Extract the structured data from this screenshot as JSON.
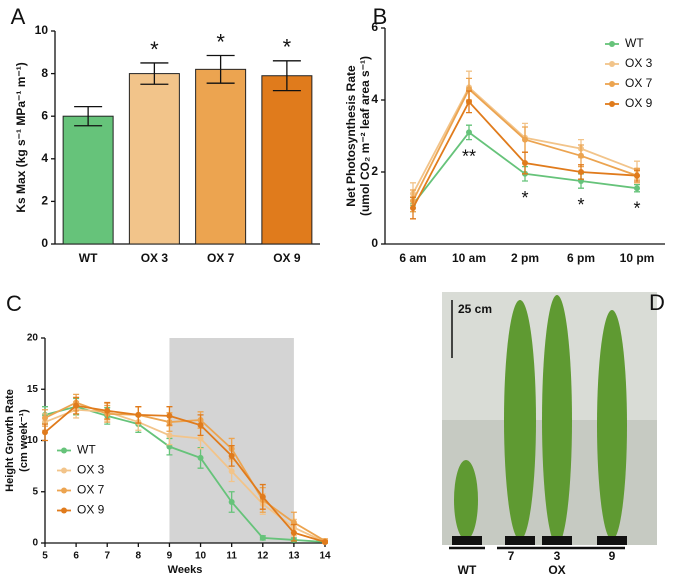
{
  "chart_data": [
    {
      "type": "bar",
      "panel": "A",
      "ylabel": [
        "Ks Max (kg s⁻¹ MPa⁻¹ m⁻¹)"
      ],
      "categories": [
        "WT",
        "OX 3",
        "OX 7",
        "OX 9"
      ],
      "values": [
        6.0,
        8.0,
        8.2,
        7.9
      ],
      "errors": [
        0.45,
        0.5,
        0.65,
        0.7
      ],
      "colors": [
        "#66c37a",
        "#f2c48a",
        "#eca450",
        "#e07b1c"
      ],
      "significance": [
        null,
        "*",
        "*",
        "*"
      ],
      "ylim": [
        0,
        10
      ],
      "yticks": [
        0,
        2,
        4,
        6,
        8,
        10
      ]
    },
    {
      "type": "line",
      "panel": "B",
      "ylabel": [
        "Net Photosynthesis Rate",
        "(umol CO₂ m⁻² leaf area s⁻¹)"
      ],
      "categories": [
        "6 am",
        "10 am",
        "2 pm",
        "6 pm",
        "10 pm"
      ],
      "series": [
        {
          "name": "WT",
          "color": "#66c37a",
          "values": [
            1.1,
            3.1,
            1.95,
            1.75,
            1.55
          ],
          "errors": [
            0.2,
            0.2,
            0.2,
            0.2,
            0.1
          ]
        },
        {
          "name": "OX 3",
          "color": "#f2c48a",
          "values": [
            1.4,
            4.35,
            2.95,
            2.65,
            2.05
          ],
          "errors": [
            0.3,
            0.45,
            0.4,
            0.25,
            0.25
          ]
        },
        {
          "name": "OX 7",
          "color": "#eca450",
          "values": [
            1.2,
            4.3,
            2.9,
            2.45,
            1.9
          ],
          "errors": [
            0.3,
            0.3,
            0.35,
            0.3,
            0.2
          ]
        },
        {
          "name": "OX 9",
          "color": "#e07b1c",
          "values": [
            1.0,
            3.95,
            2.25,
            2.0,
            1.9
          ],
          "errors": [
            0.3,
            0.3,
            0.3,
            0.2,
            0.15
          ]
        }
      ],
      "significance": [
        null,
        "**",
        "*",
        "*",
        "*"
      ],
      "legend": "upper right",
      "ylim": [
        0,
        6
      ],
      "yticks": [
        0,
        2,
        4,
        6
      ]
    },
    {
      "type": "line",
      "panel": "C",
      "ylabel": [
        "Height Growth Rate",
        "(cm week⁻¹)"
      ],
      "xlabel": "Weeks",
      "x": [
        5,
        6,
        7,
        8,
        9,
        10,
        11,
        12,
        13,
        14
      ],
      "series": [
        {
          "name": "WT",
          "color": "#66c37a",
          "values": [
            12.5,
            13.3,
            12.4,
            11.6,
            9.4,
            8.3,
            4.0,
            0.5,
            0.3,
            0.1
          ],
          "errors": [
            0.8,
            0.8,
            0.8,
            0.8,
            0.8,
            1.0,
            1.0,
            0.2,
            0.2,
            0.1
          ]
        },
        {
          "name": "OX 3",
          "color": "#f2c48a",
          "values": [
            11.8,
            13.0,
            12.8,
            11.8,
            10.5,
            10.2,
            7.0,
            3.8,
            1.5,
            0.1
          ],
          "errors": [
            0.8,
            0.8,
            0.8,
            0.8,
            0.9,
            1.0,
            1.0,
            1.0,
            0.8,
            0.1
          ]
        },
        {
          "name": "OX 7",
          "color": "#eca450",
          "values": [
            12.2,
            13.7,
            12.6,
            12.5,
            11.8,
            12.0,
            9.2,
            4.2,
            2.0,
            0.2
          ],
          "errors": [
            0.8,
            0.8,
            0.8,
            0.8,
            0.9,
            0.8,
            1.0,
            1.2,
            1.0,
            0.2
          ]
        },
        {
          "name": "OX 9",
          "color": "#e07b1c",
          "values": [
            10.8,
            13.4,
            12.9,
            12.5,
            12.4,
            11.5,
            8.5,
            4.5,
            1.0,
            0.1
          ],
          "errors": [
            0.8,
            0.8,
            0.8,
            0.8,
            0.9,
            1.0,
            1.0,
            1.2,
            0.8,
            0.1
          ]
        }
      ],
      "shade": [
        9,
        13
      ],
      "legend": "center left",
      "xlim": [
        5,
        14
      ],
      "xticks": [
        5,
        6,
        7,
        8,
        9,
        10,
        11,
        12,
        13,
        14
      ],
      "ylim": [
        0,
        20
      ],
      "yticks": [
        0,
        5,
        10,
        15,
        20
      ]
    }
  ],
  "photo_panel": {
    "panel": "D",
    "scale_label": "25 cm",
    "labels": [
      "WT",
      "7",
      "3",
      "9"
    ],
    "group_label": "OX"
  }
}
